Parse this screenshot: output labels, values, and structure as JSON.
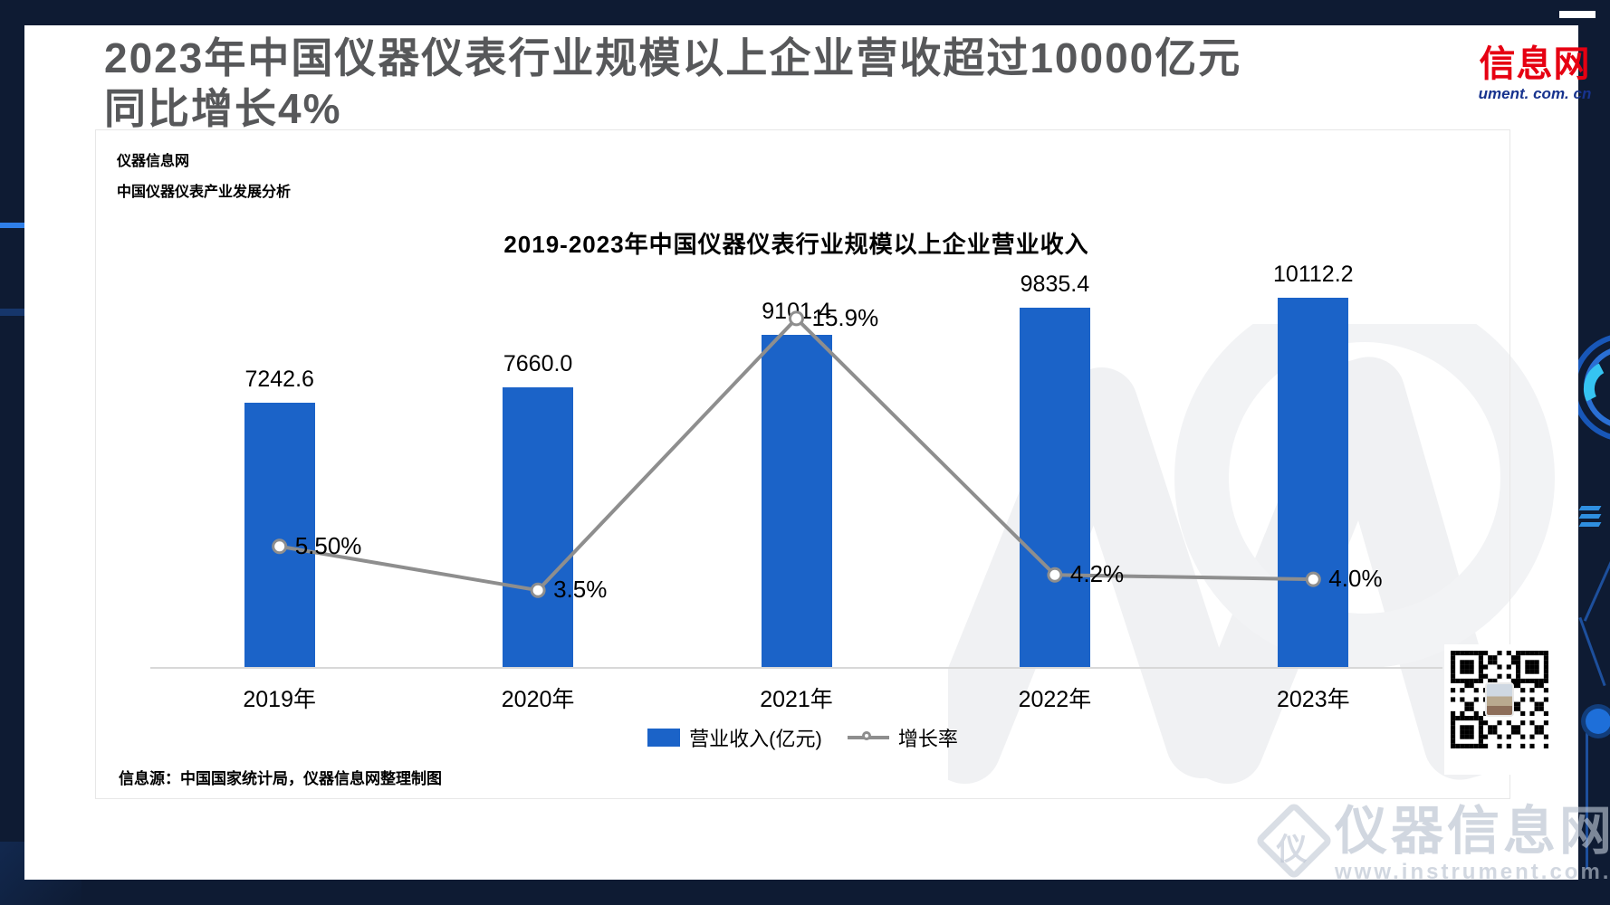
{
  "header": {
    "title_line1": "2023年中国仪器仪表行业规模以上企业营收超过10000亿元",
    "title_line2": "同比增长4%"
  },
  "logo": {
    "text_cn": "信息网",
    "text_domain": "ument. com. cn"
  },
  "card": {
    "brand1": "仪器信息网",
    "brand2": "中国仪器仪表产业发展分析",
    "source": "信息源：中国国家统计局，仪器信息网整理制图"
  },
  "chart_data": {
    "type": "bar",
    "title": "2019-2023年中国仪器仪表行业规模以上企业营业收入",
    "categories": [
      "2019年",
      "2020年",
      "2021年",
      "2022年",
      "2023年"
    ],
    "series": [
      {
        "name": "营业收入(亿元)",
        "type": "bar",
        "values": [
          7242.6,
          7660.0,
          9101.4,
          9835.4,
          10112.2
        ],
        "labels": [
          "7242.6",
          "7660.0",
          "9101.4",
          "9835.4",
          "10112.2"
        ]
      },
      {
        "name": "增长率",
        "type": "line",
        "values": [
          5.5,
          3.5,
          15.9,
          4.2,
          4.0
        ],
        "labels": [
          "5.50%",
          "3.5%",
          "15.9%",
          "4.2%",
          "4.0%"
        ]
      }
    ],
    "ylim_bar": [
      0,
      10800
    ],
    "ylim_line": [
      0,
      18
    ],
    "xlabel": "",
    "ylabel": "",
    "grid": false,
    "legend_position": "bottom",
    "colors": {
      "bar": "#1b63c8",
      "line": "#8e8e8e",
      "marker_fill": "#ffffff",
      "axis": "#d8d8d8"
    }
  },
  "watermark": {
    "brand": "仪器信息网",
    "url": "www.instrument.com.cn",
    "glyph": "仪"
  },
  "theme": {
    "background_navy": "#0e1b33",
    "panel_white": "#ffffff",
    "title_gray": "#57585a",
    "logo_red": "#e60012",
    "logo_blue": "#17338e"
  }
}
